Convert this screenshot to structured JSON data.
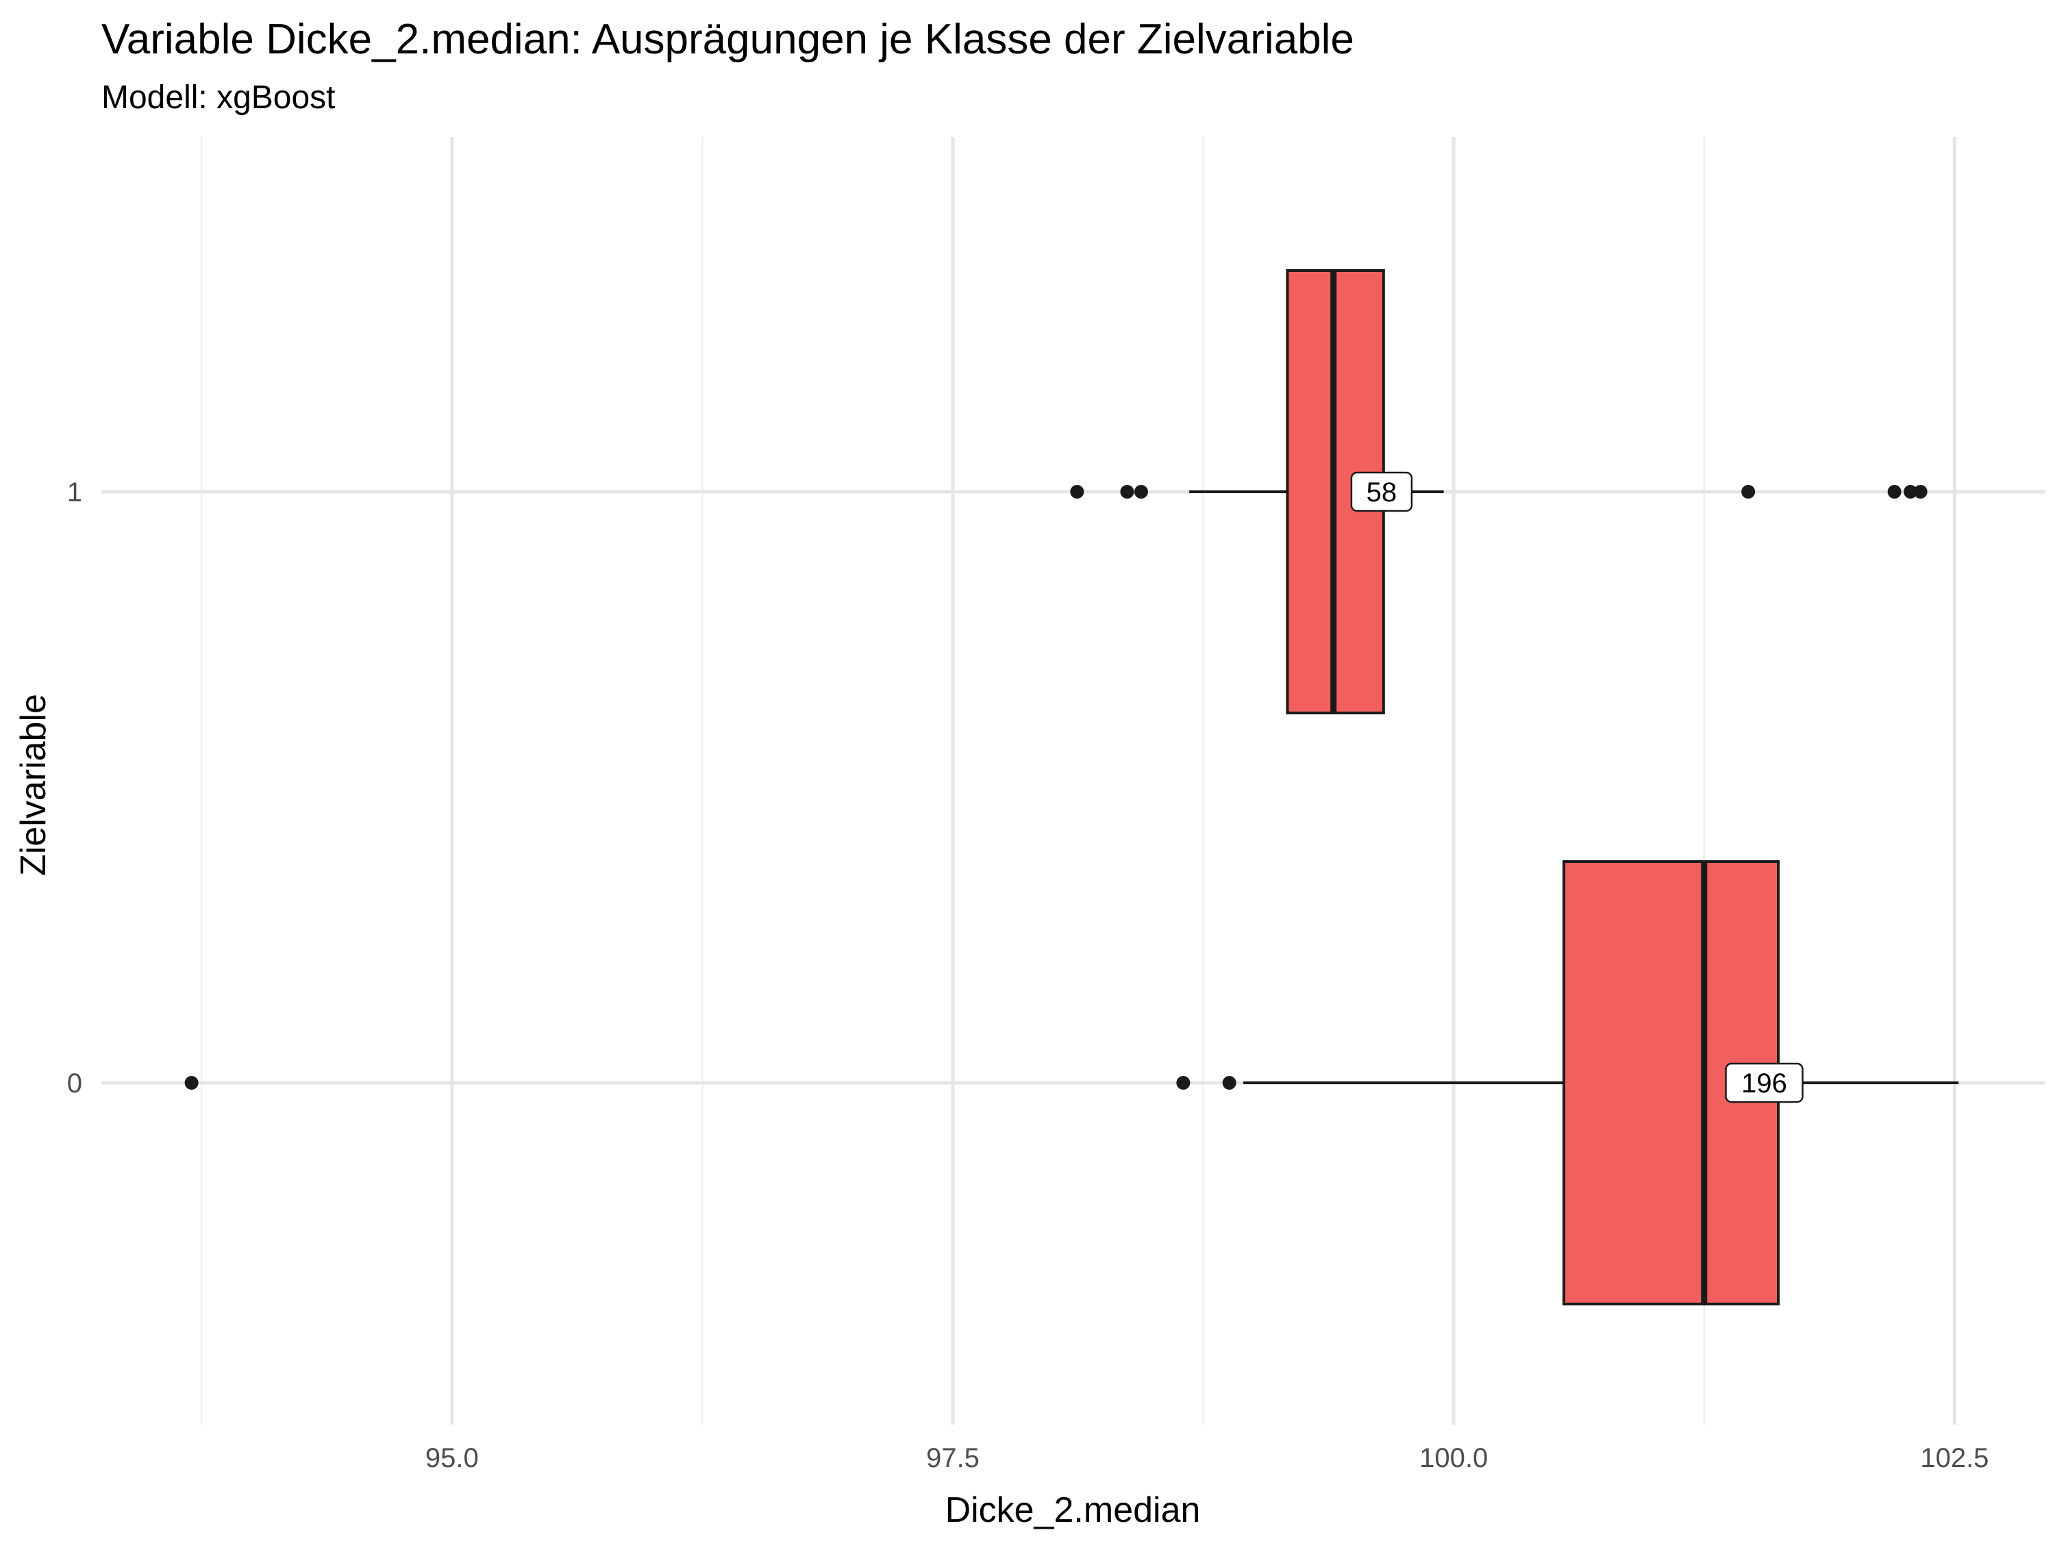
{
  "chart_data": {
    "type": "boxplot",
    "orientation": "horizontal",
    "title": "Variable Dicke_2.median: Ausprägungen je Klasse der Zielvariable",
    "subtitle": "Modell: xgBoost",
    "xlabel": "Dicke_2.median",
    "ylabel": "Zielvariable",
    "xlim": [
      93.25,
      102.95
    ],
    "x_ticks": [
      95.0,
      97.5,
      100.0,
      102.5
    ],
    "x_tick_labels": [
      "95.0",
      "97.5",
      "100.0",
      "102.5"
    ],
    "x_minor_ticks": [
      93.75,
      96.25,
      98.75,
      101.25
    ],
    "categories": [
      "0",
      "1"
    ],
    "grid": true,
    "legend": "none",
    "fill_color": "#f25f5c",
    "series": [
      {
        "category": "0",
        "whisker_low": 98.95,
        "q1": 100.55,
        "median": 101.25,
        "q3": 101.62,
        "whisker_high": 102.52,
        "outliers": [
          93.7,
          98.65,
          98.88
        ],
        "count_label": "196",
        "count_label_x": 101.55
      },
      {
        "category": "1",
        "whisker_low": 98.68,
        "q1": 99.17,
        "median": 99.4,
        "q3": 99.65,
        "whisker_high": 99.95,
        "outliers": [
          98.12,
          98.37,
          98.44,
          101.47,
          102.2,
          102.28,
          102.33
        ],
        "count_label": "58",
        "count_label_x": 99.64
      }
    ]
  }
}
